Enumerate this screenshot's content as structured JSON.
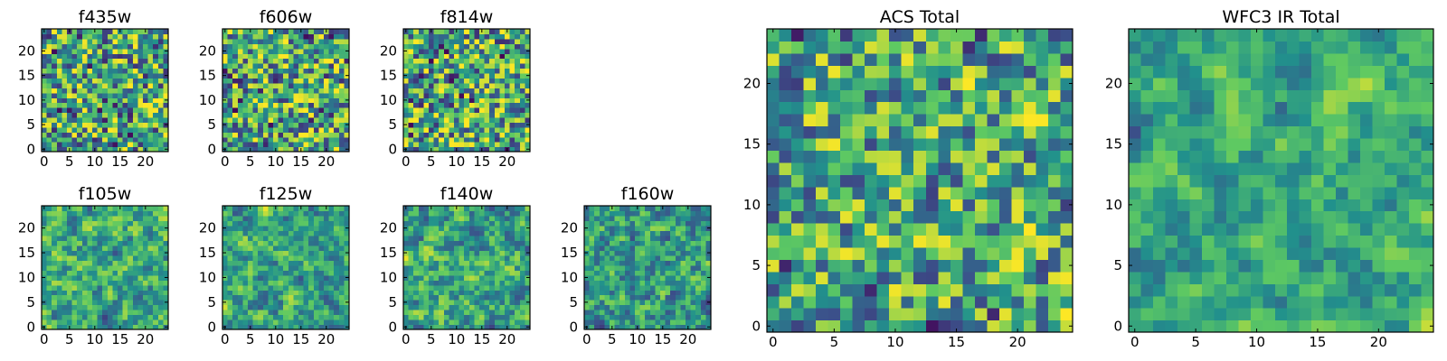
{
  "figure": {
    "colormap": [
      "#440154",
      "#3b528b",
      "#21918c",
      "#5ec962",
      "#fde725"
    ],
    "background": "#ffffff"
  },
  "chart_data": [
    {
      "type": "heatmap",
      "title": "f435w",
      "xlim": [
        0,
        24
      ],
      "ylim": [
        0,
        24
      ],
      "x_ticks": [
        0,
        5,
        10,
        15,
        20
      ],
      "y_ticks": [
        0,
        5,
        10,
        15,
        20
      ],
      "grid": false,
      "rows": 25,
      "cols": 25,
      "value_range": [
        0,
        1
      ],
      "seed": 11,
      "smoothing": 0.0,
      "bias": 0.58
    },
    {
      "type": "heatmap",
      "title": "f606w",
      "xlim": [
        0,
        24
      ],
      "ylim": [
        0,
        24
      ],
      "x_ticks": [
        0,
        5,
        10,
        15,
        20
      ],
      "y_ticks": [
        0,
        5,
        10,
        15,
        20
      ],
      "grid": false,
      "rows": 25,
      "cols": 25,
      "value_range": [
        0,
        1
      ],
      "seed": 23,
      "smoothing": 0.0,
      "bias": 0.62
    },
    {
      "type": "heatmap",
      "title": "f814w",
      "xlim": [
        0,
        24
      ],
      "ylim": [
        0,
        24
      ],
      "x_ticks": [
        0,
        5,
        10,
        15,
        20
      ],
      "y_ticks": [
        0,
        5,
        10,
        15,
        20
      ],
      "grid": false,
      "rows": 25,
      "cols": 25,
      "value_range": [
        0,
        1
      ],
      "seed": 37,
      "smoothing": 0.0,
      "bias": 0.6
    },
    {
      "type": "heatmap",
      "title": "f105w",
      "xlim": [
        0,
        24
      ],
      "ylim": [
        0,
        24
      ],
      "x_ticks": [
        0,
        5,
        10,
        15,
        20
      ],
      "y_ticks": [
        0,
        5,
        10,
        15,
        20
      ],
      "grid": false,
      "rows": 25,
      "cols": 25,
      "value_range": [
        0,
        1
      ],
      "seed": 41,
      "smoothing": 0.55,
      "bias": 0.62
    },
    {
      "type": "heatmap",
      "title": "f125w",
      "xlim": [
        0,
        24
      ],
      "ylim": [
        0,
        24
      ],
      "x_ticks": [
        0,
        5,
        10,
        15,
        20
      ],
      "y_ticks": [
        0,
        5,
        10,
        15,
        20
      ],
      "grid": false,
      "rows": 25,
      "cols": 25,
      "value_range": [
        0,
        1
      ],
      "seed": 53,
      "smoothing": 0.55,
      "bias": 0.6
    },
    {
      "type": "heatmap",
      "title": "f140w",
      "xlim": [
        0,
        24
      ],
      "ylim": [
        0,
        24
      ],
      "x_ticks": [
        0,
        5,
        10,
        15,
        20
      ],
      "y_ticks": [
        0,
        5,
        10,
        15,
        20
      ],
      "grid": false,
      "rows": 25,
      "cols": 25,
      "value_range": [
        0,
        1
      ],
      "seed": 67,
      "smoothing": 0.55,
      "bias": 0.6
    },
    {
      "type": "heatmap",
      "title": "f160w",
      "xlim": [
        0,
        24
      ],
      "ylim": [
        0,
        24
      ],
      "x_ticks": [
        0,
        5,
        10,
        15,
        20
      ],
      "y_ticks": [
        0,
        5,
        10,
        15,
        20
      ],
      "grid": false,
      "rows": 25,
      "cols": 25,
      "value_range": [
        0,
        1
      ],
      "seed": 79,
      "smoothing": 0.5,
      "bias": 0.55
    },
    {
      "type": "heatmap",
      "title": "ACS Total",
      "xlim": [
        0,
        24
      ],
      "ylim": [
        0,
        24
      ],
      "x_ticks": [
        0,
        5,
        10,
        15,
        20
      ],
      "y_ticks": [
        0,
        5,
        10,
        15,
        20
      ],
      "grid": false,
      "rows": 25,
      "cols": 25,
      "value_range": [
        0,
        1
      ],
      "seed": 97,
      "smoothing": 0.15,
      "bias": 0.6
    },
    {
      "type": "heatmap",
      "title": "WFC3 IR Total",
      "xlim": [
        0,
        24
      ],
      "ylim": [
        0,
        24
      ],
      "x_ticks": [
        0,
        5,
        10,
        15,
        20
      ],
      "y_ticks": [
        0,
        5,
        10,
        15,
        20
      ],
      "grid": false,
      "rows": 25,
      "cols": 25,
      "value_range": [
        0,
        1
      ],
      "seed": 103,
      "smoothing": 0.7,
      "bias": 0.6
    }
  ]
}
